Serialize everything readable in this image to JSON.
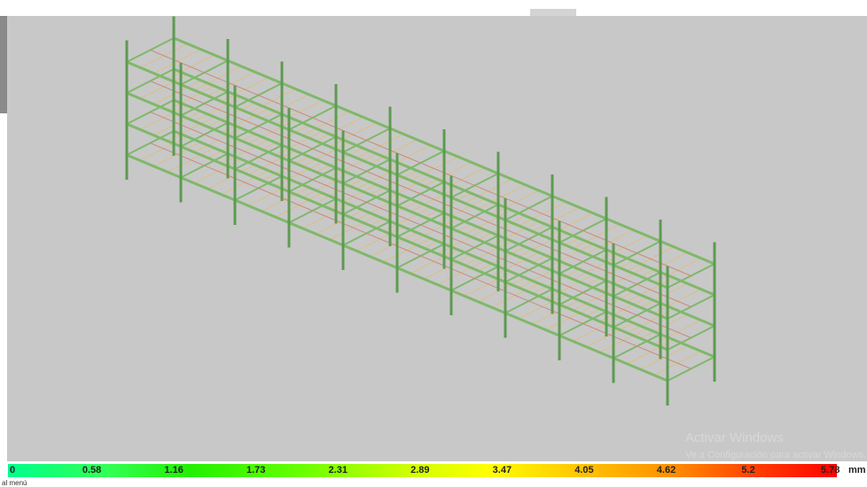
{
  "viewport": {
    "legend": {
      "labels": [
        "0",
        "0.58",
        "1.16",
        "1.73",
        "2.31",
        "2.89",
        "3.47",
        "4.05",
        "4.62",
        "5.2",
        "5.78"
      ],
      "unit": "mm"
    },
    "watermark": {
      "title": "Activar Windows",
      "subtitle": "Ve a Configuración para activar Windows."
    },
    "status": "al menú"
  }
}
